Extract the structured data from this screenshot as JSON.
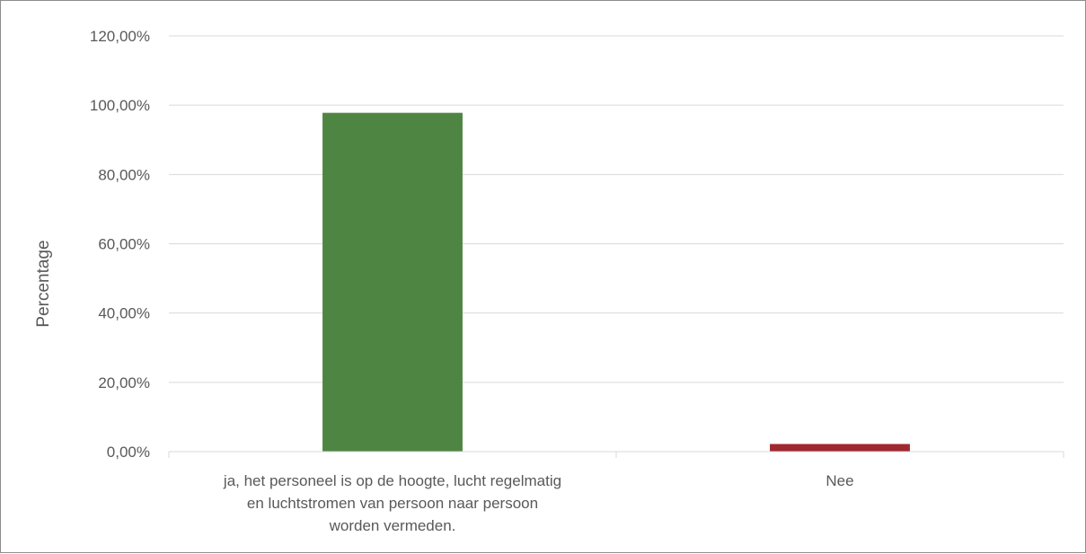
{
  "chart_data": {
    "type": "bar",
    "title": "",
    "xlabel": "",
    "ylabel": "Percentage",
    "ylim": [
      0,
      120
    ],
    "yticks": [
      "0,00%",
      "20,00%",
      "40,00%",
      "60,00%",
      "80,00%",
      "100,00%",
      "120,00%"
    ],
    "ytick_values": [
      0,
      20,
      40,
      60,
      80,
      100,
      120
    ],
    "grid": true,
    "legend": "none",
    "categories": [
      "ja, het personeel is op de hoogte, lucht regelmatig en luchtstromen van persoon naar persoon worden vermeden.",
      "Nee"
    ],
    "category_lines": [
      [
        "ja, het personeel is op de hoogte, lucht regelmatig",
        "en luchtstromen van persoon naar persoon",
        "worden vermeden."
      ],
      [
        "Nee"
      ]
    ],
    "values": [
      97.8,
      2.2
    ],
    "colors": [
      "#4e8542",
      "#a0282f"
    ]
  }
}
